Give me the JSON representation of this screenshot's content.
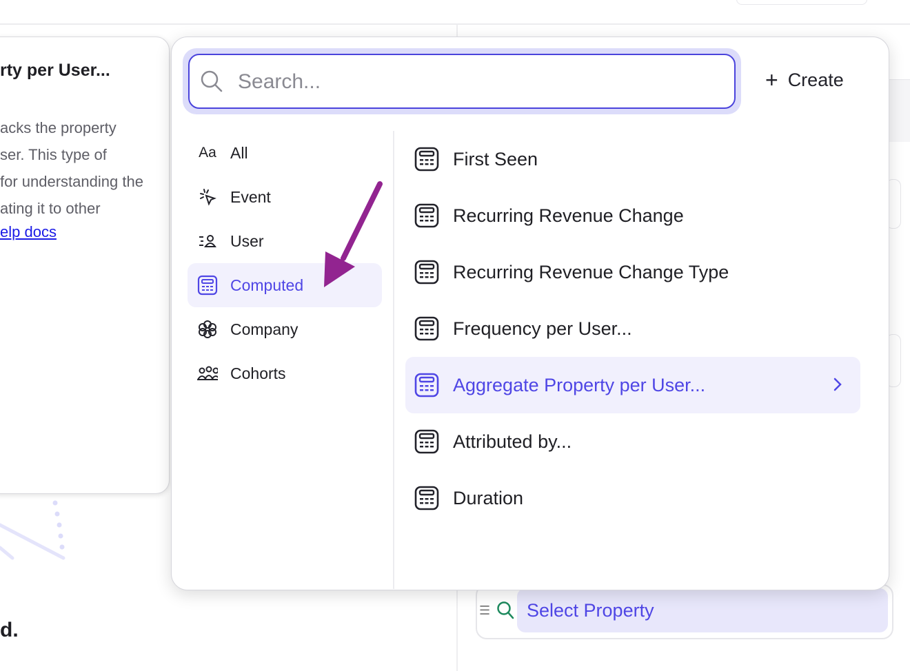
{
  "tooltip": {
    "title": "rty per User...",
    "body_lines": [
      "acks the property",
      "ser. This type of",
      "for understanding the",
      "ating it to other"
    ],
    "link": "elp docs"
  },
  "background": {
    "bottom_text": "d."
  },
  "search": {
    "placeholder": "Search...",
    "value": ""
  },
  "create_label": "Create",
  "categories": [
    {
      "label": "All",
      "icon": "text-aa-icon"
    },
    {
      "label": "Event",
      "icon": "cursor-click-icon"
    },
    {
      "label": "User",
      "icon": "user-list-icon"
    },
    {
      "label": "Computed",
      "icon": "calculator-icon",
      "selected": true
    },
    {
      "label": "Company",
      "icon": "flower-icon"
    },
    {
      "label": "Cohorts",
      "icon": "group-icon"
    }
  ],
  "properties": [
    {
      "label": "First Seen"
    },
    {
      "label": "Recurring Revenue Change"
    },
    {
      "label": "Recurring Revenue Change Type"
    },
    {
      "label": "Frequency per User..."
    },
    {
      "label": "Aggregate Property per User...",
      "highlighted": true
    },
    {
      "label": "Attributed by..."
    },
    {
      "label": "Duration"
    }
  ],
  "select_property_label": "Select Property",
  "colors": {
    "accent": "#4f46e5",
    "highlight": "#f1f0fd",
    "annotation_arrow": "#922490",
    "search_icon_green": "#1e8a5e"
  }
}
